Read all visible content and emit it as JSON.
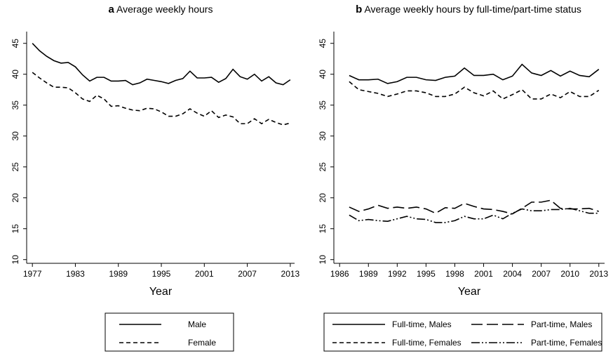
{
  "chart_data": [
    {
      "type": "line",
      "panel": "a",
      "title": "Average weekly hours",
      "xlabel": "Year",
      "x": [
        1977,
        1978,
        1979,
        1980,
        1981,
        1982,
        1983,
        1984,
        1985,
        1986,
        1987,
        1988,
        1989,
        1990,
        1991,
        1992,
        1993,
        1994,
        1995,
        1996,
        1997,
        1998,
        1999,
        2000,
        2001,
        2002,
        2003,
        2004,
        2005,
        2006,
        2007,
        2008,
        2009,
        2010,
        2011,
        2012,
        2013
      ],
      "series": [
        {
          "name": "Male",
          "color": "#000000",
          "dash": "solid",
          "values": [
            45,
            43.8,
            42.9,
            42.2,
            41.8,
            41.9,
            41.2,
            39.9,
            38.9,
            39.5,
            39.5,
            38.9,
            38.9,
            39,
            38.3,
            38.6,
            39.2,
            39,
            38.8,
            38.5,
            39,
            39.3,
            40.5,
            39.4,
            39.4,
            39.5,
            38.7,
            39.3,
            40.8,
            39.6,
            39.2,
            40,
            38.9,
            39.6,
            38.6,
            38.3,
            39.1
          ]
        },
        {
          "name": "Female",
          "color": "#000000",
          "dash": "dashed",
          "values": [
            40.3,
            39.4,
            38.6,
            37.9,
            37.9,
            37.8,
            37,
            36,
            35.6,
            36.6,
            36,
            34.8,
            34.9,
            34.5,
            34.2,
            34.1,
            34.5,
            34.4,
            33.9,
            33.2,
            33.2,
            33.6,
            34.4,
            33.7,
            33.2,
            34.1,
            33,
            33.4,
            33.1,
            32,
            32,
            32.8,
            32,
            32.7,
            32.2,
            31.8,
            32.1
          ]
        }
      ],
      "xlim": [
        1976.2,
        2013.6
      ],
      "xticks": [
        1977,
        1983,
        1989,
        1995,
        2001,
        2007,
        2013
      ],
      "ylim": [
        9.4,
        46.9
      ],
      "yticks": [
        10,
        15,
        20,
        25,
        30,
        35,
        40,
        45
      ]
    },
    {
      "type": "line",
      "panel": "b",
      "title": "Average weekly hours by full-time/part-time status",
      "xlabel": "Year",
      "x": [
        1987,
        1988,
        1989,
        1990,
        1991,
        1992,
        1993,
        1994,
        1995,
        1996,
        1997,
        1998,
        1999,
        2000,
        2001,
        2002,
        2003,
        2004,
        2005,
        2006,
        2007,
        2008,
        2009,
        2010,
        2011,
        2012,
        2013
      ],
      "series": [
        {
          "name": "Full-time, Males",
          "color": "#000000",
          "dash": "solid",
          "values": [
            39.8,
            39.1,
            39.1,
            39.2,
            38.5,
            38.8,
            39.5,
            39.5,
            39.1,
            39,
            39.5,
            39.7,
            41,
            39.8,
            39.8,
            40,
            39.1,
            39.7,
            41.6,
            40.2,
            39.8,
            40.6,
            39.7,
            40.5,
            39.8,
            39.6,
            40.8
          ]
        },
        {
          "name": "Part-time, Males",
          "color": "#000000",
          "dash": "longdash",
          "values": [
            18.5,
            17.8,
            18.2,
            18.8,
            18.3,
            18.5,
            18.3,
            18.5,
            18.2,
            17.5,
            18.4,
            18.3,
            19.1,
            18.6,
            18.2,
            18.1,
            17.8,
            17.4,
            18.3,
            19.3,
            19.3,
            19.6,
            18.3,
            18.2,
            18.2,
            18.3,
            17.8
          ]
        },
        {
          "name": "Full-time, Females",
          "color": "#000000",
          "dash": "dashed",
          "values": [
            38.8,
            37.5,
            37.2,
            36.9,
            36.4,
            36.8,
            37.3,
            37.3,
            37,
            36.4,
            36.4,
            36.8,
            37.9,
            37,
            36.5,
            37.3,
            36,
            36.7,
            37.5,
            36,
            36,
            36.8,
            36.2,
            37.2,
            36.4,
            36.4,
            37.4
          ]
        },
        {
          "name": "Part-time, Females",
          "color": "#000000",
          "dash": "dashdotdot",
          "values": [
            17.2,
            16.3,
            16.5,
            16.3,
            16.2,
            16.6,
            17,
            16.6,
            16.5,
            16,
            16,
            16.3,
            17,
            16.6,
            16.6,
            17.2,
            16.6,
            17.5,
            18.2,
            17.9,
            17.9,
            18.1,
            18.1,
            18.3,
            17.9,
            17.5,
            17.5
          ]
        }
      ],
      "xlim": [
        1985.4,
        2013.6
      ],
      "xticks": [
        1986,
        1989,
        1992,
        1995,
        1998,
        2001,
        2004,
        2007,
        2010,
        2013
      ],
      "ylim": [
        9.4,
        46.9
      ],
      "yticks": [
        10,
        15,
        20,
        25,
        30,
        35,
        40,
        45
      ]
    }
  ]
}
